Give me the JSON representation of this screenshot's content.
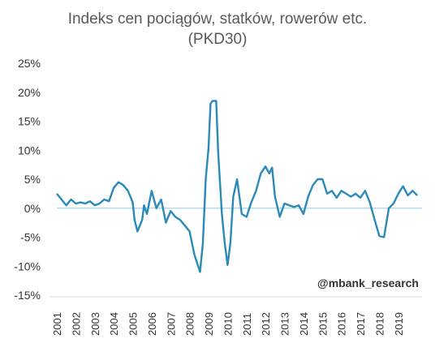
{
  "chart_data": {
    "type": "line",
    "title": "Indeks cen pociągów, statków, rowerów etc.",
    "subtitle": "(PKD30)",
    "watermark": "@mbank_research",
    "ylim": [
      -0.15,
      0.25
    ],
    "y_ticks": [
      "25%",
      "20%",
      "15%",
      "10%",
      "5%",
      "0%",
      "-5%",
      "-10%",
      "-15%"
    ],
    "y_tick_values": [
      0.25,
      0.2,
      0.15,
      0.1,
      0.05,
      0.0,
      -0.05,
      -0.1,
      -0.15
    ],
    "x_ticks": [
      "2001",
      "2002",
      "2003",
      "2004",
      "2005",
      "2006",
      "2007",
      "2008",
      "2009",
      "2010",
      "2011",
      "2012",
      "2013",
      "2014",
      "2015",
      "2016",
      "2017",
      "2018",
      "2019"
    ],
    "xlim": [
      2001.0,
      2020.25
    ],
    "line_color": "#2a8ab8",
    "zero_line_color": "#a8d5ea",
    "series": [
      {
        "x": [
          2001.0,
          2001.25,
          2001.5,
          2001.75,
          2002.0,
          2002.25,
          2002.5,
          2002.75,
          2003.0,
          2003.25,
          2003.5,
          2003.75,
          2004.0,
          2004.25,
          2004.5,
          2004.75,
          2005.0,
          2005.1,
          2005.25,
          2005.5,
          2005.6,
          2005.75,
          2006.0,
          2006.25,
          2006.5,
          2006.75,
          2007.0,
          2007.25,
          2007.5,
          2007.75,
          2008.0,
          2008.25,
          2008.4,
          2008.55,
          2008.7,
          2008.85,
          2009.0,
          2009.1,
          2009.2,
          2009.4,
          2009.5,
          2009.7,
          2009.85,
          2010.0,
          2010.15,
          2010.3,
          2010.5,
          2010.75,
          2011.0,
          2011.25,
          2011.5,
          2011.75,
          2012.0,
          2012.2,
          2012.35,
          2012.5,
          2012.75,
          2013.0,
          2013.25,
          2013.5,
          2013.75,
          2014.0,
          2014.25,
          2014.5,
          2014.75,
          2015.0,
          2015.25,
          2015.5,
          2015.75,
          2016.0,
          2016.25,
          2016.5,
          2016.75,
          2017.0,
          2017.25,
          2017.5,
          2017.75,
          2018.0,
          2018.25,
          2018.5,
          2018.75,
          2019.0,
          2019.25,
          2019.5,
          2019.75,
          2020.0
        ],
        "values": [
          0.025,
          0.015,
          0.005,
          0.015,
          0.008,
          0.01,
          0.008,
          0.012,
          0.005,
          0.008,
          0.015,
          0.012,
          0.035,
          0.045,
          0.04,
          0.03,
          0.01,
          -0.02,
          -0.04,
          -0.02,
          0.005,
          -0.01,
          0.03,
          0.0,
          0.015,
          -0.025,
          -0.005,
          -0.015,
          -0.02,
          -0.03,
          -0.04,
          -0.08,
          -0.095,
          -0.11,
          -0.06,
          0.05,
          0.105,
          0.18,
          0.185,
          0.185,
          0.1,
          -0.01,
          -0.06,
          -0.098,
          -0.06,
          0.02,
          0.05,
          -0.01,
          -0.015,
          0.01,
          0.03,
          0.06,
          0.072,
          0.06,
          0.07,
          0.02,
          -0.015,
          0.008,
          0.005,
          0.002,
          0.005,
          -0.01,
          0.02,
          0.04,
          0.05,
          0.05,
          0.025,
          0.03,
          0.018,
          0.03,
          0.025,
          0.02,
          0.025,
          0.018,
          0.03,
          0.01,
          -0.02,
          -0.048,
          -0.05,
          0.0,
          0.008,
          0.025,
          0.038,
          0.022,
          0.03,
          0.022
        ]
      }
    ]
  }
}
